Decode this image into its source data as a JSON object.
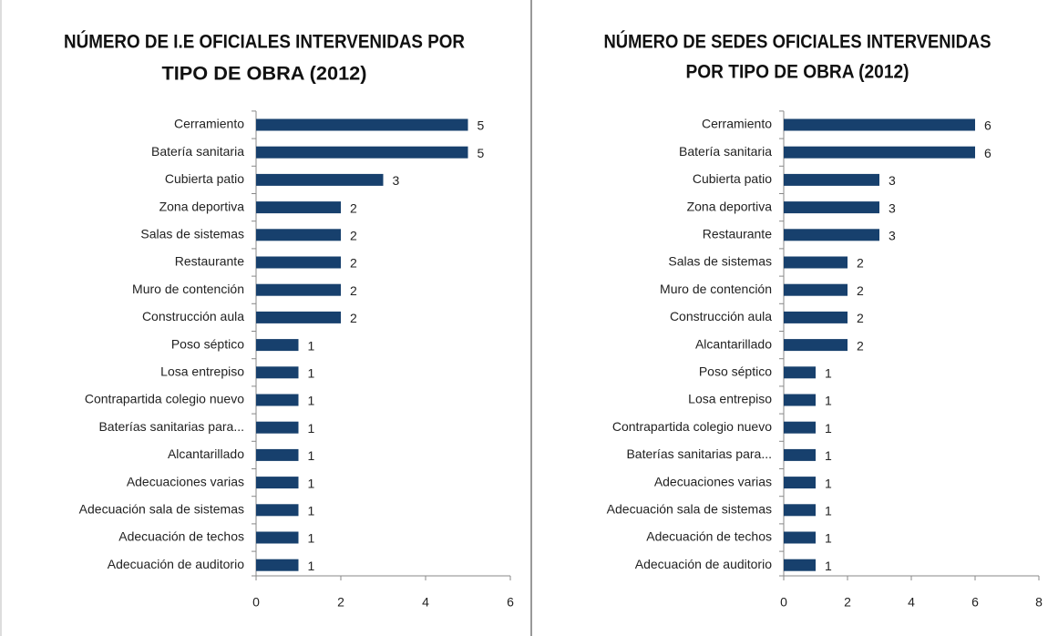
{
  "chart_data": [
    {
      "type": "bar",
      "orientation": "horizontal",
      "title": [
        "NÚMERO DE I.E OFICIALES INTERVENIDAS POR",
        "TIPO DE OBRA (2012)"
      ],
      "categories": [
        "Cerramiento",
        "Batería sanitaria",
        "Cubierta patio",
        "Zona deportiva",
        "Salas de sistemas",
        "Restaurante",
        "Muro de contención",
        "Construcción aula",
        "Poso séptico",
        "Losa entrepiso",
        "Contrapartida colegio nuevo",
        "Baterías sanitarias para...",
        "Alcantarillado",
        "Adecuaciones varias",
        "Adecuación sala de sistemas",
        "Adecuación de techos",
        "Adecuación de auditorio"
      ],
      "values": [
        5,
        5,
        3,
        2,
        2,
        2,
        2,
        2,
        1,
        1,
        1,
        1,
        1,
        1,
        1,
        1,
        1
      ],
      "color": "#17406d",
      "xlim": [
        0,
        6
      ],
      "xticks": [
        0,
        2,
        4,
        6
      ],
      "grid": false
    },
    {
      "type": "bar",
      "orientation": "horizontal",
      "title": [
        "NÚMERO DE SEDES OFICIALES INTERVENIDAS",
        "POR TIPO DE OBRA (2012)"
      ],
      "categories": [
        "Cerramiento",
        "Batería sanitaria",
        "Cubierta patio",
        "Zona deportiva",
        "Restaurante",
        "Salas de sistemas",
        "Muro de contención",
        "Construcción aula",
        "Alcantarillado",
        "Poso séptico",
        "Losa entrepiso",
        "Contrapartida colegio nuevo",
        "Baterías sanitarias para...",
        "Adecuaciones varias",
        "Adecuación sala de sistemas",
        "Adecuación de techos",
        "Adecuación de auditorio"
      ],
      "values": [
        6,
        6,
        3,
        3,
        3,
        2,
        2,
        2,
        2,
        1,
        1,
        1,
        1,
        1,
        1,
        1,
        1
      ],
      "color": "#17406d",
      "xlim": [
        0,
        8
      ],
      "xticks": [
        0,
        2,
        4,
        6,
        8
      ],
      "grid": false
    }
  ]
}
